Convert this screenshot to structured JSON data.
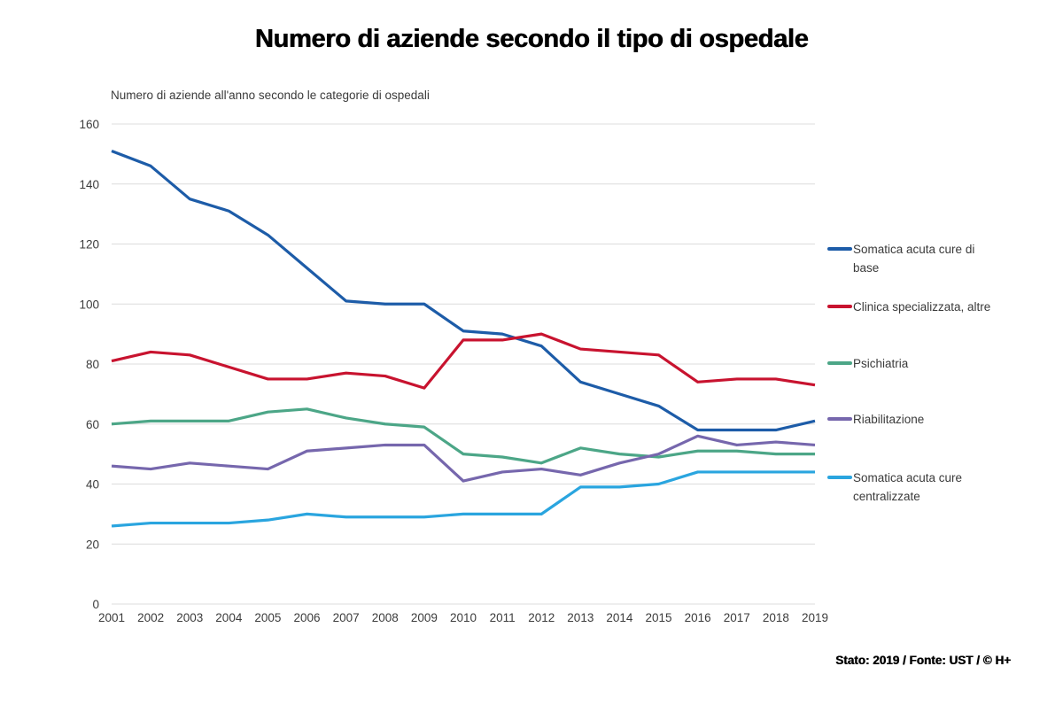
{
  "chart_data": {
    "type": "line",
    "title": "Numero di aziende secondo il tipo di ospedale",
    "subtitle": "Numero di aziende all'anno secondo le categorie di ospedali",
    "source_note": "Stato: 2019 / Fonte: UST / © H+",
    "x": [
      2001,
      2002,
      2003,
      2004,
      2005,
      2006,
      2007,
      2008,
      2009,
      2010,
      2011,
      2012,
      2013,
      2014,
      2015,
      2016,
      2017,
      2018,
      2019
    ],
    "series": [
      {
        "name": "Somatica acuta cure di base",
        "color": "#1d5ca8",
        "values": [
          151,
          146,
          135,
          131,
          123,
          112,
          101,
          100,
          100,
          91,
          90,
          86,
          74,
          70,
          66,
          58,
          58,
          58,
          61
        ]
      },
      {
        "name": "Clinica specializzata, altre",
        "color": "#c8132f",
        "values": [
          81,
          84,
          83,
          79,
          75,
          75,
          77,
          76,
          72,
          88,
          88,
          90,
          85,
          84,
          83,
          74,
          75,
          75,
          73
        ]
      },
      {
        "name": "Psichiatria",
        "color": "#4ca687",
        "values": [
          60,
          61,
          61,
          61,
          64,
          65,
          62,
          60,
          59,
          50,
          49,
          47,
          52,
          50,
          49,
          51,
          51,
          50,
          50
        ]
      },
      {
        "name": "Riabilitazione",
        "color": "#7667ad",
        "values": [
          46,
          45,
          47,
          46,
          45,
          51,
          52,
          53,
          53,
          41,
          44,
          45,
          43,
          47,
          50,
          56,
          53,
          54,
          53
        ]
      },
      {
        "name": "Somatica acuta cure centralizzate",
        "color": "#2aa5df",
        "values": [
          26,
          27,
          27,
          27,
          28,
          30,
          29,
          29,
          29,
          30,
          30,
          30,
          39,
          39,
          40,
          44,
          44,
          44,
          44
        ]
      }
    ],
    "ylim": [
      0,
      160
    ],
    "ytick_step": 20,
    "grid": true,
    "legend_position": "right"
  }
}
